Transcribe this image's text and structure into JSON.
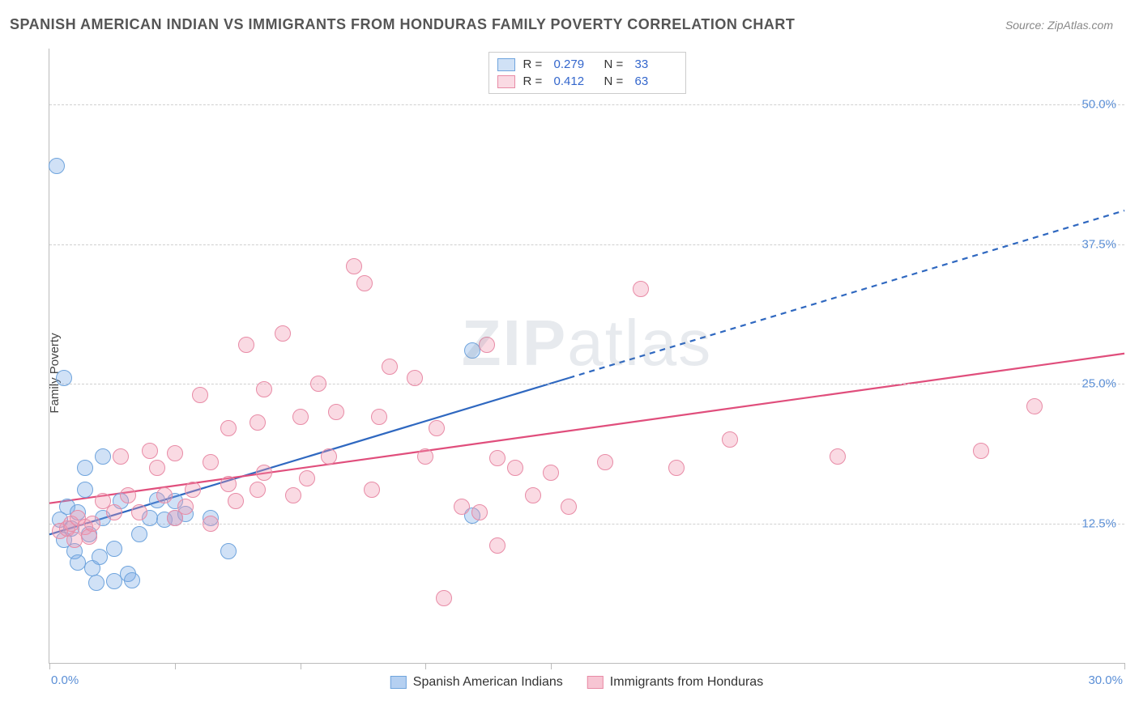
{
  "header": {
    "title": "SPANISH AMERICAN INDIAN VS IMMIGRANTS FROM HONDURAS FAMILY POVERTY CORRELATION CHART",
    "source": "Source: ZipAtlas.com"
  },
  "y_axis_label": "Family Poverty",
  "watermark": "ZIPatlas",
  "chart": {
    "type": "scatter",
    "xlim": [
      0,
      30
    ],
    "ylim": [
      0,
      55
    ],
    "x_ticks": [
      0,
      3.5,
      7,
      10.5,
      14,
      30
    ],
    "x_tick_labels": {
      "min": "0.0%",
      "max": "30.0%"
    },
    "y_gridlines": [
      12.5,
      25.0,
      37.5,
      50.0
    ],
    "y_tick_labels": [
      "12.5%",
      "25.0%",
      "37.5%",
      "50.0%"
    ],
    "background_color": "#ffffff",
    "grid_color": "#d0d0d0",
    "axis_color": "#bbbbbb",
    "tick_label_color": "#5b8fd6",
    "marker_radius": 10,
    "marker_border_width": 1.5,
    "series": [
      {
        "name": "Spanish American Indians",
        "fill": "rgba(120,170,230,0.35)",
        "stroke": "#6fa4dd",
        "r_label": "R =",
        "r_value": "0.279",
        "n_label": "N =",
        "n_value": "33",
        "trend": {
          "x1": 0,
          "y1": 11.5,
          "x2": 30,
          "y2": 40.5,
          "solid_until_x": 14.5,
          "color": "#2f68c0",
          "width": 2.2
        },
        "points": [
          [
            0.2,
            44.5
          ],
          [
            0.4,
            25.5
          ],
          [
            0.3,
            12.8
          ],
          [
            0.4,
            11.0
          ],
          [
            0.5,
            14.0
          ],
          [
            0.6,
            12.0
          ],
          [
            0.7,
            10.0
          ],
          [
            0.8,
            9.0
          ],
          [
            0.8,
            13.5
          ],
          [
            1.0,
            17.5
          ],
          [
            1.0,
            15.5
          ],
          [
            1.1,
            11.5
          ],
          [
            1.2,
            8.5
          ],
          [
            1.3,
            7.2
          ],
          [
            1.4,
            9.5
          ],
          [
            1.5,
            13.0
          ],
          [
            1.5,
            18.5
          ],
          [
            1.8,
            10.2
          ],
          [
            1.8,
            7.3
          ],
          [
            2.0,
            14.5
          ],
          [
            2.2,
            8.0
          ],
          [
            2.3,
            7.4
          ],
          [
            2.5,
            11.5
          ],
          [
            2.8,
            13.0
          ],
          [
            3.0,
            14.6
          ],
          [
            3.2,
            12.8
          ],
          [
            3.5,
            13.0
          ],
          [
            3.5,
            14.5
          ],
          [
            3.8,
            13.3
          ],
          [
            4.5,
            13.0
          ],
          [
            5.0,
            10.0
          ],
          [
            11.8,
            28.0
          ],
          [
            11.8,
            13.2
          ]
        ]
      },
      {
        "name": "Immigrants from Honduras",
        "fill": "rgba(240,150,175,0.35)",
        "stroke": "#e88ba6",
        "r_label": "R =",
        "r_value": "0.412",
        "n_label": "N =",
        "n_value": "63",
        "trend": {
          "x1": 0,
          "y1": 14.3,
          "x2": 30,
          "y2": 27.7,
          "solid_until_x": 30,
          "color": "#e04e7c",
          "width": 2.2
        },
        "points": [
          [
            0.3,
            11.8
          ],
          [
            0.5,
            12.0
          ],
          [
            0.6,
            12.5
          ],
          [
            0.7,
            11.0
          ],
          [
            0.8,
            13.0
          ],
          [
            1.0,
            12.2
          ],
          [
            1.1,
            11.3
          ],
          [
            1.2,
            12.5
          ],
          [
            1.5,
            14.5
          ],
          [
            1.8,
            13.5
          ],
          [
            2.0,
            18.5
          ],
          [
            2.2,
            15.0
          ],
          [
            2.5,
            13.5
          ],
          [
            2.8,
            19.0
          ],
          [
            3.0,
            17.5
          ],
          [
            3.2,
            15.0
          ],
          [
            3.5,
            18.8
          ],
          [
            3.5,
            13.0
          ],
          [
            3.8,
            14.0
          ],
          [
            4.0,
            15.5
          ],
          [
            4.2,
            24.0
          ],
          [
            4.5,
            18.0
          ],
          [
            4.5,
            12.5
          ],
          [
            5.0,
            21.0
          ],
          [
            5.0,
            16.0
          ],
          [
            5.2,
            14.5
          ],
          [
            5.5,
            28.5
          ],
          [
            5.8,
            15.5
          ],
          [
            5.8,
            21.5
          ],
          [
            6.0,
            17.0
          ],
          [
            6.0,
            24.5
          ],
          [
            6.5,
            29.5
          ],
          [
            6.8,
            15.0
          ],
          [
            7.0,
            22.0
          ],
          [
            7.2,
            16.5
          ],
          [
            7.5,
            25.0
          ],
          [
            7.8,
            18.5
          ],
          [
            8.0,
            22.5
          ],
          [
            8.5,
            35.5
          ],
          [
            8.8,
            34.0
          ],
          [
            9.0,
            15.5
          ],
          [
            9.2,
            22.0
          ],
          [
            9.5,
            26.5
          ],
          [
            10.2,
            25.5
          ],
          [
            10.5,
            18.5
          ],
          [
            10.8,
            21.0
          ],
          [
            11.0,
            5.8
          ],
          [
            11.5,
            14.0
          ],
          [
            12.0,
            13.5
          ],
          [
            12.2,
            28.5
          ],
          [
            12.5,
            10.5
          ],
          [
            13.0,
            17.5
          ],
          [
            13.5,
            15.0
          ],
          [
            14.0,
            17.0
          ],
          [
            14.5,
            14.0
          ],
          [
            15.5,
            18.0
          ],
          [
            16.5,
            33.5
          ],
          [
            17.5,
            17.5
          ],
          [
            19.0,
            20.0
          ],
          [
            22.0,
            18.5
          ],
          [
            26.0,
            19.0
          ],
          [
            27.5,
            23.0
          ],
          [
            12.5,
            18.3
          ]
        ]
      }
    ]
  },
  "legend_bottom": {
    "items": [
      {
        "swatch_fill": "rgba(120,170,230,0.55)",
        "swatch_stroke": "#6fa4dd",
        "label": "Spanish American Indians"
      },
      {
        "swatch_fill": "rgba(240,150,175,0.55)",
        "swatch_stroke": "#e88ba6",
        "label": "Immigrants from Honduras"
      }
    ]
  }
}
